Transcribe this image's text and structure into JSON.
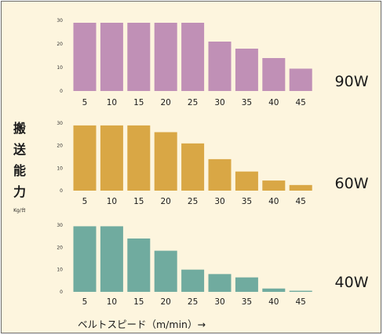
{
  "chart_data": [
    {
      "type": "bar",
      "title": "90W",
      "categories": [
        "5",
        "10",
        "15",
        "20",
        "25",
        "30",
        "35",
        "40",
        "45"
      ],
      "values": [
        29,
        29,
        29,
        29,
        29,
        21,
        18,
        14,
        9.5
      ],
      "y_ticks": [
        "0",
        "10",
        "20",
        "30"
      ],
      "ylim": [
        0,
        30
      ],
      "color": "#c090b6",
      "grid": false
    },
    {
      "type": "bar",
      "title": "60W",
      "categories": [
        "5",
        "10",
        "15",
        "20",
        "25",
        "30",
        "35",
        "40",
        "45"
      ],
      "values": [
        29,
        29,
        29,
        26,
        21,
        14,
        8.5,
        4.5,
        2.5
      ],
      "y_ticks": [
        "0",
        "10",
        "20",
        "30"
      ],
      "ylim": [
        0,
        30
      ],
      "color": "#d9a745",
      "grid": false
    },
    {
      "type": "bar",
      "title": "40W",
      "categories": [
        "5",
        "10",
        "15",
        "20",
        "25",
        "30",
        "35",
        "40",
        "45"
      ],
      "values": [
        29.5,
        29.5,
        24,
        18.5,
        10,
        8,
        6.5,
        1.5,
        0.5
      ],
      "y_ticks": [
        "0",
        "10",
        "20",
        "30"
      ],
      "ylim": [
        0,
        30
      ],
      "color": "#70ab9f",
      "grid": false
    }
  ],
  "y_axis_title_chars": [
    "搬",
    "送",
    "能",
    "力"
  ],
  "y_axis_unit": "Kg/台",
  "x_axis_title": "ベルトスピード（m/min）→"
}
